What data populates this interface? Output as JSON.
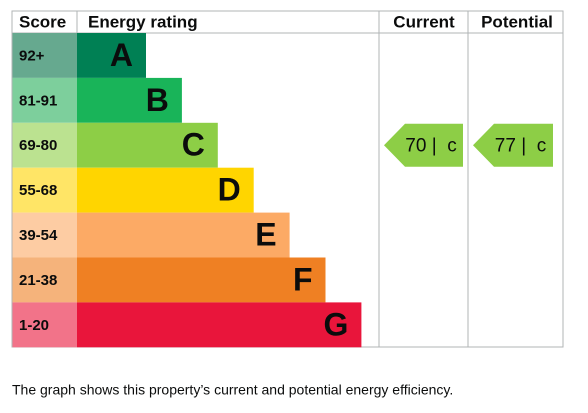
{
  "header": {
    "score": "Score",
    "rating": "Energy rating",
    "current": "Current",
    "potential": "Potential"
  },
  "bands": [
    {
      "score": "92+",
      "letter": "A",
      "color": "#008054",
      "score_color": "#66a98f"
    },
    {
      "score": "81-91",
      "letter": "B",
      "color": "#19b459",
      "score_color": "#7dcf9c"
    },
    {
      "score": "69-80",
      "letter": "C",
      "color": "#8dce46",
      "score_color": "#bbe290"
    },
    {
      "score": "55-68",
      "letter": "D",
      "color": "#ffd500",
      "score_color": "#ffe566"
    },
    {
      "score": "39-54",
      "letter": "E",
      "color": "#fcaa65",
      "score_color": "#fdcca3"
    },
    {
      "score": "21-38",
      "letter": "F",
      "color": "#ef8023",
      "score_color": "#f5b37b"
    },
    {
      "score": "1-20",
      "letter": "G",
      "color": "#e9153b",
      "score_color": "#f27389"
    }
  ],
  "current": {
    "label": "70 |  c",
    "band": "C"
  },
  "potential": {
    "label": "77 |  c",
    "band": "C"
  },
  "caption": "The graph shows this property’s current and potential energy efficiency."
}
